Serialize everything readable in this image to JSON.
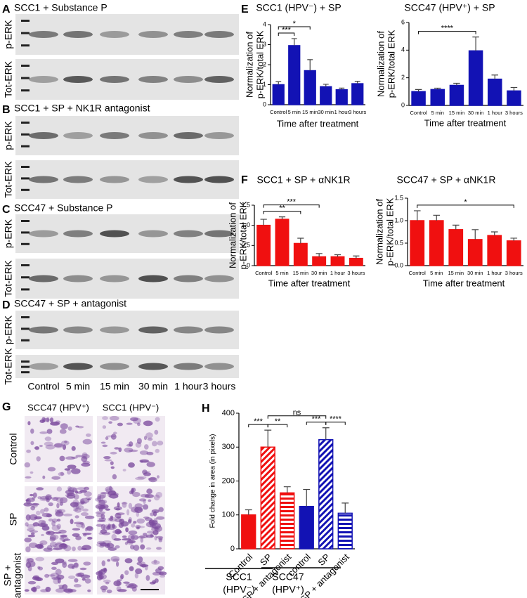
{
  "blots": {
    "panels": [
      {
        "letter": "A",
        "title": "SCC1 + Substance P"
      },
      {
        "letter": "B",
        "title": "SCC1 + SP + NK1R antagonist"
      },
      {
        "letter": "C",
        "title": "SCC47 + Substance P"
      },
      {
        "letter": "D",
        "title": "SCC47 + SP + antagonist"
      }
    ],
    "row_labels": [
      "p-ERK",
      "Tot-ERK"
    ],
    "lanes": [
      "Control",
      "5 min",
      "15 min",
      "30 min",
      "1 hour",
      "3 hours"
    ]
  },
  "panel_letters": {
    "E": "E",
    "F": "F",
    "H": "H"
  },
  "micrographs": {
    "letter": "G",
    "columns": [
      "SCC47 (HPV⁺)",
      "SCC1 (HPV⁻)"
    ],
    "rows": [
      [
        "Control"
      ],
      [
        "SP"
      ],
      [
        "SP +",
        "antagonist"
      ]
    ]
  },
  "chart_data": [
    {
      "type": "bar",
      "title": "SCC1 (HPV⁻) + SP",
      "ylabel": [
        "Normalization of",
        "p-ERK/total ERK"
      ],
      "xlabel": "Time after treatment",
      "categories": [
        "Control",
        "5 min",
        "15 min",
        "30 min",
        "1 hour",
        "3 hours"
      ],
      "values": [
        1.0,
        2.95,
        1.7,
        0.9,
        0.75,
        1.05
      ],
      "errors": [
        0.15,
        0.35,
        0.55,
        0.12,
        0.08,
        0.12
      ],
      "color": "#1212b4",
      "ylim": [
        0,
        4
      ],
      "yticks": [
        0,
        1,
        2,
        3,
        4
      ],
      "brackets": [
        {
          "from": 0,
          "to": 1,
          "label": "***"
        },
        {
          "from": 0,
          "to": 2,
          "label": "*"
        }
      ]
    },
    {
      "type": "bar",
      "title": "SCC47 (HPV⁺) + SP",
      "ylabel": [
        "Normalization of",
        "p-ERK/total ERK"
      ],
      "xlabel": "Time after treatment",
      "categories": [
        "Control",
        "5 min",
        "15 min",
        "30 min",
        "1 hour",
        "3 hours"
      ],
      "values": [
        1.0,
        1.15,
        1.45,
        3.95,
        1.9,
        1.05
      ],
      "errors": [
        0.15,
        0.1,
        0.15,
        1.0,
        0.3,
        0.25
      ],
      "color": "#1212b4",
      "ylim": [
        0,
        6
      ],
      "yticks": [
        0,
        2,
        4,
        6
      ],
      "brackets": [
        {
          "from": 0,
          "to": 3,
          "label": "****"
        }
      ]
    },
    {
      "type": "bar",
      "title": "SCC1 + SP + αNK1R",
      "ylabel": [
        "Normalization of",
        "p-ERK/total ERK"
      ],
      "xlabel": "Time after treatment",
      "categories": [
        "Control",
        "5 min",
        "15 min",
        "30 min",
        "1 hour",
        "3 hours"
      ],
      "values": [
        1.0,
        1.15,
        0.55,
        0.22,
        0.22,
        0.18
      ],
      "errors": [
        0.15,
        0.06,
        0.13,
        0.08,
        0.05,
        0.06
      ],
      "color": "#f01010",
      "ylim": [
        0,
        1.5
      ],
      "yticks": [
        0,
        0.5,
        {
          "value": 1,
          "label": "1.0"
        },
        1.5
      ],
      "brackets": [
        {
          "from": 0,
          "to": 2,
          "label": "**"
        },
        {
          "from": 0,
          "to": 3,
          "label": "***"
        }
      ]
    },
    {
      "type": "bar",
      "title": "SCC47 + SP + αNK1R",
      "ylabel": [
        "Normalization of",
        "p-ERK/total ERK"
      ],
      "xlabel": "Time after treatment",
      "categories": [
        "Control",
        "5 min",
        "15 min",
        "30 min",
        "1 hour",
        "3 hours"
      ],
      "values": [
        1.0,
        1.0,
        0.8,
        0.58,
        0.67,
        0.55
      ],
      "errors": [
        0.22,
        0.12,
        0.1,
        0.22,
        0.08,
        0.06
      ],
      "color": "#f01010",
      "ylim": [
        0,
        1.5
      ],
      "yticks": [
        {
          "value": 0,
          "label": "0.0"
        },
        0.5,
        {
          "value": 1,
          "label": "1.0"
        },
        1.5
      ],
      "brackets": [
        {
          "from": 0,
          "to": 5,
          "label": "*"
        }
      ]
    },
    {
      "type": "bar",
      "ylabel": [
        "Fold change in area (in pixels)"
      ],
      "categories": [
        "Control",
        "SP",
        "SP + antagonist",
        "control",
        "SP",
        "SP + antagonist"
      ],
      "values": [
        100,
        300,
        165,
        125,
        322,
        105
      ],
      "errors": [
        15,
        50,
        18,
        50,
        35,
        30
      ],
      "colors": [
        "#f01010",
        "#f01010",
        "#f01010",
        "#1212b4",
        "#1212b4",
        "#1212b4"
      ],
      "patterns": [
        "solid",
        "diagonal",
        "horizontal",
        "solid",
        "diagonal",
        "horizontal"
      ],
      "ylim": [
        0,
        400
      ],
      "yticks": [
        0,
        100,
        200,
        300,
        400
      ],
      "brackets": [
        {
          "from": 0,
          "to": 1,
          "label": "***"
        },
        {
          "from": 1,
          "to": 2,
          "label": "**"
        },
        {
          "from": 3,
          "to": 4,
          "label": "***"
        },
        {
          "from": 4,
          "to": 5,
          "label": "****"
        },
        {
          "from": 1,
          "to": 4,
          "label": "ns"
        }
      ],
      "groups": [
        {
          "name": "SCC1",
          "sub": "(HPV⁻)"
        },
        {
          "name": "SCC47",
          "sub": "(HPV⁺)"
        }
      ]
    }
  ]
}
